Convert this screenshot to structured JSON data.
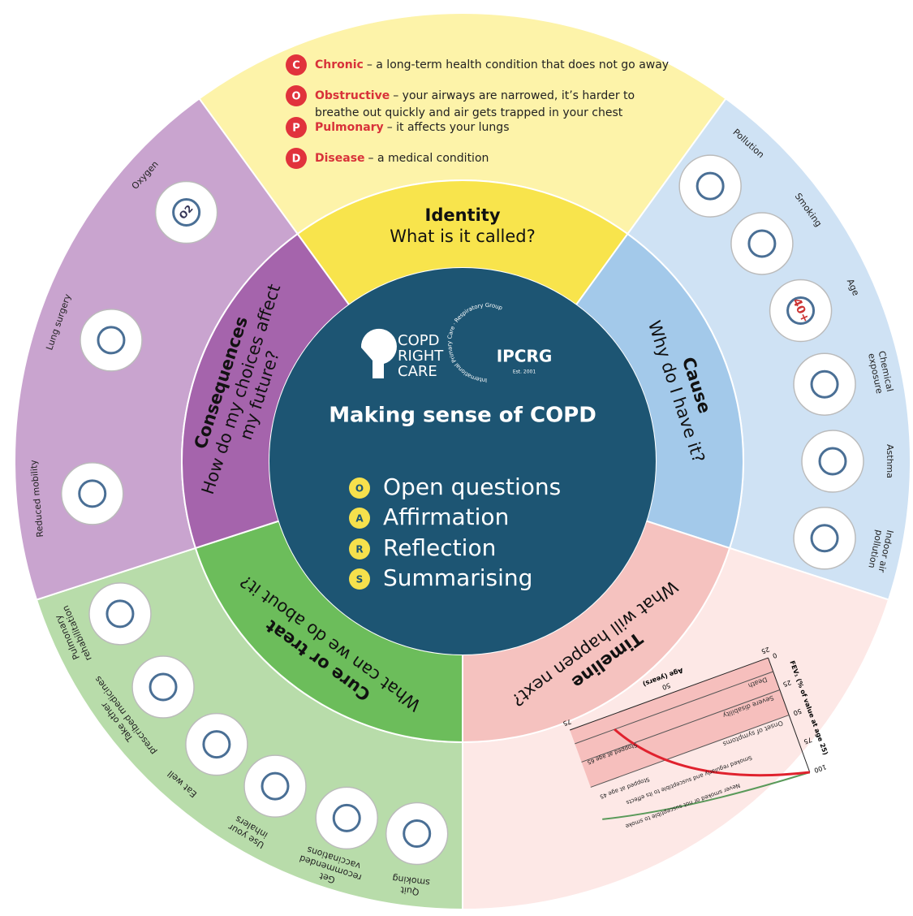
{
  "definitions": [
    {
      "letter": "C",
      "term": "Chronic",
      "text": "– a long-term health condition that does not go away"
    },
    {
      "letter": "O",
      "term": "Obstructive",
      "text": "– your airways are narrowed, it’s harder to",
      "text2": "breathe out quickly and air gets trapped in your chest"
    },
    {
      "letter": "P",
      "term": "Pulmonary",
      "text": "– it affects your lungs"
    },
    {
      "letter": "D",
      "term": "Disease",
      "text": "– a medical condition"
    }
  ],
  "sectors": [
    {
      "title": "Identity",
      "question": "What is it called?"
    },
    {
      "title": "Cause",
      "question": "Why do I have it?"
    },
    {
      "title": "Timeline",
      "question": "What will happen next?"
    },
    {
      "title": "Cure or treat",
      "question": "What can we do about it?"
    },
    {
      "title": "Consequences",
      "question": "How do my choices affect",
      "question2": "my future?"
    }
  ],
  "cause_items": [
    [
      "Pollution"
    ],
    [
      "Smoking"
    ],
    [
      "Age"
    ],
    [
      "Chemical",
      "exposure"
    ],
    [
      "Asthma"
    ],
    [
      "Indoor air",
      "pollution"
    ]
  ],
  "age_icon_text": "40+",
  "treatment_items": [
    [
      "Quit",
      "smoking"
    ],
    [
      "Get",
      "recommended",
      "vaccinations"
    ],
    [
      "Use your",
      "inhalers"
    ],
    [
      "Eat well"
    ],
    [
      "Take other",
      "prescribed medicines"
    ],
    [
      "Pulmonary",
      "rehabilitation"
    ]
  ],
  "consequence_items": [
    [
      "Reduced mobility"
    ],
    [
      "Lung surgery"
    ],
    [
      "Oxygen"
    ]
  ],
  "oxygen_icon_text": "O2",
  "timeline_chart": {
    "y_label": "FEV₁ (% of value at age 25)",
    "x_label": "Age (years)",
    "y_ticks": [
      0,
      25,
      50,
      75,
      100
    ],
    "x_ticks": [
      25,
      50,
      75
    ],
    "thresholds": [
      "Death",
      "Severe disability",
      "Onset of symptoms"
    ],
    "curves": [
      "Smoked regularly and susceptible to its effects",
      "Never smoked or not susceptible to smoke",
      "Stopped at age 45",
      "Stopped at age 65"
    ]
  },
  "center": {
    "logo_lines": [
      "COPD",
      "RIGHT",
      "CARE"
    ],
    "ipcrg": "IPCRG",
    "ipcrg_ring": "International Primary Care · Respiratory Group",
    "est": "Est. 2001",
    "title": "Making sense of COPD",
    "oars": [
      {
        "letter": "O",
        "text": "Open questions"
      },
      {
        "letter": "A",
        "text": "Affirmation"
      },
      {
        "letter": "R",
        "text": "Reflection"
      },
      {
        "letter": "S",
        "text": "Summarising"
      }
    ]
  }
}
